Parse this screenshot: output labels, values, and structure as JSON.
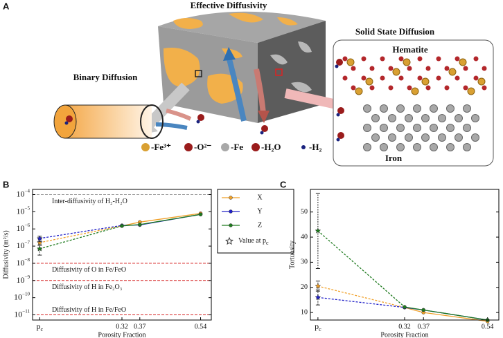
{
  "diagram": {
    "panel_label": "A",
    "title": "Effective Diffusivity",
    "solid_state": "Solid State Diffusion",
    "hematite": "Hematite",
    "iron": "Iron",
    "binary": "Binary Diffusion",
    "legend": [
      "-Fe³⁺",
      "-O²⁻",
      "-Fe",
      "-H₂O",
      "-H₂"
    ]
  },
  "chart_data": [
    {
      "type": "line",
      "panel_label": "B",
      "log": true,
      "ylabel": "Diffusivity (m²/s)",
      "xlabel": "Porosity Fraction",
      "xlim": [
        0.07,
        0.57
      ],
      "ylim": [
        5e-12,
        0.0002
      ],
      "x": [
        0.09,
        0.32,
        0.37,
        0.54
      ],
      "xticks": [
        {
          "value": 0.09,
          "label": "p",
          "sub": "c"
        },
        0.32,
        0.37,
        0.54
      ],
      "yticks": [
        {
          "value": 0.0001,
          "label": "10",
          "exponent": "−4"
        },
        {
          "value": 1e-05,
          "label": "10",
          "exponent": "−5"
        },
        {
          "value": 1e-06,
          "label": "10",
          "exponent": "−6"
        },
        {
          "value": 1e-07,
          "label": "10",
          "exponent": "−7"
        },
        {
          "value": 1e-08,
          "label": "10",
          "exponent": "−8"
        },
        {
          "value": 1e-09,
          "label": "10",
          "exponent": "−9"
        },
        {
          "value": 1e-10,
          "label": "10",
          "exponent": "−10"
        },
        {
          "value": 1e-11,
          "label": "10",
          "exponent": "−11"
        }
      ],
      "first_segment_dashed": true,
      "series": [
        {
          "name": "X",
          "color": "#f0a028",
          "values": [
            1.6e-07,
            1.5e-06,
            2.5e-06,
            8e-06
          ],
          "errors": [
            1e-07,
            null,
            null,
            null
          ]
        },
        {
          "name": "Y",
          "color": "#2020c8",
          "values": [
            2.8e-07,
            1.6e-06,
            1.7e-06,
            7e-06
          ],
          "errors": [
            1e-07,
            null,
            null,
            null
          ]
        },
        {
          "name": "Z",
          "color": "#1e7a1e",
          "values": [
            7e-08,
            1.5e-06,
            1.8e-06,
            7e-06
          ],
          "errors": [
            4e-08,
            null,
            null,
            null
          ]
        }
      ],
      "marker_note": {
        "label": "Value at p",
        "sub": "c"
      },
      "hlines": [
        {
          "value": 0.0001,
          "label": "Inter-diffusivity of H₂-H₂O",
          "color": "#999999"
        },
        {
          "value": 1e-08,
          "label": "Diffusivity of O in Fe/FeO",
          "color": "#d62020"
        },
        {
          "value": 1e-09,
          "label": "Diffusivity of H in Fe₂O₃",
          "color": "#d62020"
        },
        {
          "value": 1e-11,
          "label": "Diffusivity of H in Fe/FeO",
          "color": "#d62020"
        }
      ]
    },
    {
      "type": "line",
      "panel_label": "C",
      "log": false,
      "ylabel": "Tortuosity",
      "xlabel": "Porosity Fraction",
      "xlim": [
        0.07,
        0.57
      ],
      "ylim": [
        7,
        59
      ],
      "x": [
        0.09,
        0.32,
        0.37,
        0.54
      ],
      "xticks": [
        {
          "value": 0.09,
          "label": "p",
          "sub": "c"
        },
        0.32,
        0.37,
        0.54
      ],
      "yticks": [
        10,
        20,
        30,
        40,
        50
      ],
      "first_segment_dashed": true,
      "series": [
        {
          "name": "X",
          "color": "#f0a028",
          "values": [
            20.5,
            12,
            10,
            6.5
          ],
          "errors": [
            2,
            null,
            null,
            null
          ]
        },
        {
          "name": "Y",
          "color": "#2020c8",
          "values": [
            16,
            12,
            11,
            7
          ],
          "errors": [
            3,
            null,
            null,
            null
          ]
        },
        {
          "name": "Z",
          "color": "#1e7a1e",
          "values": [
            42.5,
            12.2,
            11,
            7
          ],
          "errors": [
            15,
            null,
            null,
            null
          ]
        }
      ]
    }
  ]
}
